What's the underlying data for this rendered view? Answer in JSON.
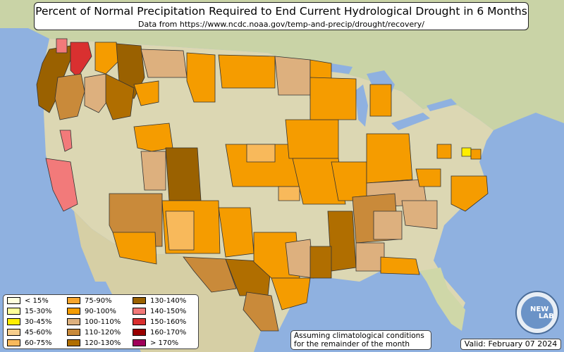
{
  "title": "Percent of Normal Precipitation Required to End Current Hydrological Drought in 6 Months",
  "subtitle": "Data from https://www.ncdc.noaa.gov/temp-and-precip/drought/recovery/",
  "legend": [
    {
      "label": "< 15%",
      "color": "#ffffdd"
    },
    {
      "label": "15-30%",
      "color": "#ffff99"
    },
    {
      "label": "30-45%",
      "color": "#ffee00"
    },
    {
      "label": "45-60%",
      "color": "#f6cd8c"
    },
    {
      "label": "60-75%",
      "color": "#f8b95b"
    },
    {
      "label": "75-90%",
      "color": "#f7a52c"
    },
    {
      "label": "90-100%",
      "color": "#f59c00"
    },
    {
      "label": "100-110%",
      "color": "#ddb07e"
    },
    {
      "label": "110-120%",
      "color": "#c98a3a"
    },
    {
      "label": "120-130%",
      "color": "#b06e00"
    },
    {
      "label": "130-140%",
      "color": "#9a6100"
    },
    {
      "label": "140-150%",
      "color": "#f27a7a"
    },
    {
      "label": "150-160%",
      "color": "#d93030"
    },
    {
      "label": "160-170%",
      "color": "#990000"
    },
    {
      "label": "> 170%",
      "color": "#a0005a"
    }
  ],
  "note": {
    "line1": "Assuming climatological conditions",
    "line2": "for the remainder of the month"
  },
  "valid": "Valid: February 07 2024",
  "logo": {
    "text1": "NEW",
    "text2": "LAB"
  }
}
